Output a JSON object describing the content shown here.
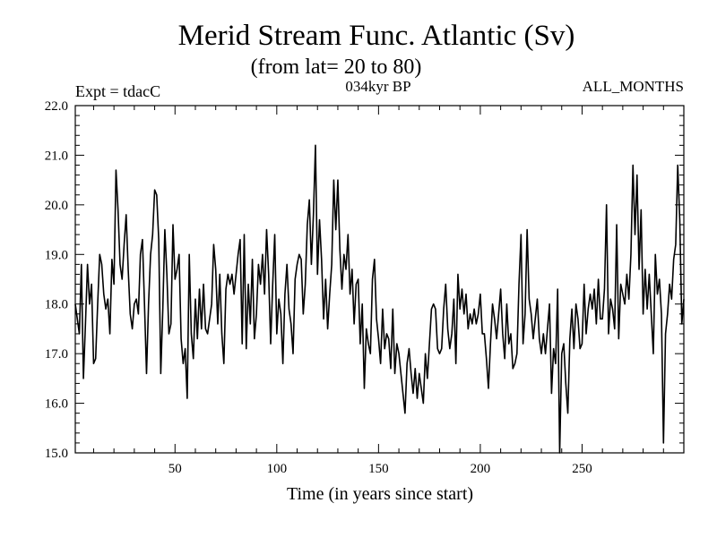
{
  "chart_data": {
    "type": "line",
    "title": "Merid Stream Func. Atlantic (Sv)",
    "subtitle": "(from lat= 20 to 80)",
    "left_label": "Expt = tdacC",
    "center_label": "034kyr BP",
    "right_label": "ALL_MONTHS",
    "xlabel": "Time (in years since start)",
    "ylabel": "",
    "xlim": [
      1,
      300
    ],
    "ylim": [
      15.0,
      22.0
    ],
    "x_ticks": [
      50,
      100,
      150,
      200,
      250
    ],
    "x_tick_labels": [
      "50",
      "100",
      "150",
      "200",
      "250"
    ],
    "y_ticks": [
      15,
      16,
      17,
      18,
      19,
      20,
      21,
      22
    ],
    "y_tick_labels": [
      "15.0",
      "16.0",
      "17.0",
      "18.0",
      "19.0",
      "20.0",
      "21.0",
      "22.0"
    ],
    "series": [
      {
        "name": "Merid Stream Func. Atlantic",
        "color": "#000000",
        "x_start": 1,
        "x_step": 1,
        "values": [
          18.0,
          17.7,
          17.4,
          18.8,
          16.5,
          17.6,
          18.8,
          18.0,
          18.4,
          16.8,
          16.9,
          18.0,
          19.0,
          18.8,
          18.2,
          17.9,
          18.1,
          17.4,
          18.9,
          18.4,
          20.7,
          19.9,
          18.8,
          18.5,
          19.2,
          19.8,
          18.7,
          17.8,
          17.5,
          18.0,
          18.1,
          17.8,
          19.0,
          19.3,
          18.0,
          16.6,
          18.0,
          19.0,
          19.4,
          20.3,
          20.2,
          19.3,
          16.6,
          17.9,
          19.5,
          18.6,
          17.4,
          17.6,
          19.6,
          18.5,
          18.7,
          19.0,
          17.3,
          16.8,
          17.1,
          16.1,
          19.0,
          17.4,
          16.9,
          18.1,
          17.3,
          18.3,
          17.5,
          18.4,
          17.5,
          17.4,
          17.7,
          18.0,
          19.2,
          18.7,
          17.6,
          18.6,
          17.4,
          16.8,
          18.3,
          18.6,
          18.4,
          18.6,
          18.2,
          18.6,
          19.0,
          19.3,
          17.2,
          19.4,
          17.1,
          18.4,
          17.6,
          18.9,
          17.3,
          17.8,
          18.8,
          18.4,
          19.0,
          18.2,
          19.5,
          18.6,
          17.2,
          18.4,
          19.4,
          17.4,
          18.1,
          17.8,
          16.8,
          18.2,
          18.8,
          17.9,
          17.6,
          17.0,
          18.5,
          18.8,
          19.0,
          18.9,
          17.8,
          18.4,
          19.6,
          20.1,
          18.8,
          19.8,
          21.2,
          18.6,
          19.7,
          18.9,
          17.7,
          18.5,
          17.5,
          18.2,
          18.8,
          20.5,
          19.5,
          20.5,
          19.1,
          18.3,
          19.0,
          18.7,
          19.4,
          18.2,
          18.7,
          17.6,
          18.4,
          18.5,
          17.2,
          18.0,
          16.3,
          17.5,
          17.2,
          17.0,
          18.5,
          18.9,
          17.7,
          17.3,
          16.8,
          17.9,
          17.1,
          17.4,
          17.3,
          16.7,
          17.9,
          16.6,
          17.2,
          17.0,
          16.6,
          16.2,
          15.8,
          16.8,
          17.1,
          16.6,
          16.2,
          16.7,
          16.1,
          16.6,
          16.3,
          16.0,
          17.0,
          16.5,
          17.2,
          17.9,
          18.0,
          17.9,
          17.1,
          17.0,
          17.1,
          17.9,
          18.4,
          17.5,
          17.1,
          17.4,
          18.1,
          16.8,
          18.6,
          17.9,
          18.3,
          17.8,
          18.2,
          17.5,
          17.8,
          17.6,
          17.9,
          17.6,
          17.8,
          18.2,
          17.4,
          17.4,
          16.9,
          16.3,
          17.2,
          18.0,
          17.7,
          17.3,
          17.8,
          18.3,
          17.4,
          16.9,
          18.0,
          17.2,
          17.4,
          16.7,
          16.8,
          17.0,
          18.4,
          19.4,
          17.2,
          17.8,
          19.5,
          18.1,
          17.8,
          17.3,
          17.7,
          18.1,
          17.3,
          17.0,
          17.4,
          17.0,
          17.5,
          18.0,
          16.2,
          17.1,
          16.8,
          18.3,
          15.0,
          17.0,
          17.2,
          16.4,
          15.8,
          17.3,
          17.9,
          17.1,
          18.0,
          17.7,
          17.1,
          17.2,
          18.4,
          17.4,
          17.9,
          18.2,
          17.9,
          18.3,
          17.6,
          18.5,
          17.7,
          17.7,
          18.3,
          20.0,
          17.4,
          18.1,
          17.9,
          17.5,
          19.6,
          17.3,
          18.4,
          18.2,
          18.0,
          18.6,
          18.1,
          19.0,
          20.8,
          19.4,
          20.6,
          18.7,
          19.9,
          17.8,
          18.7,
          17.9,
          18.6,
          17.8,
          17.0,
          19.0,
          18.2,
          18.5,
          17.8,
          15.2,
          17.4,
          17.8,
          18.4,
          18.1,
          18.9,
          19.2,
          20.8,
          19.7,
          17.6,
          18.1
        ]
      }
    ]
  }
}
